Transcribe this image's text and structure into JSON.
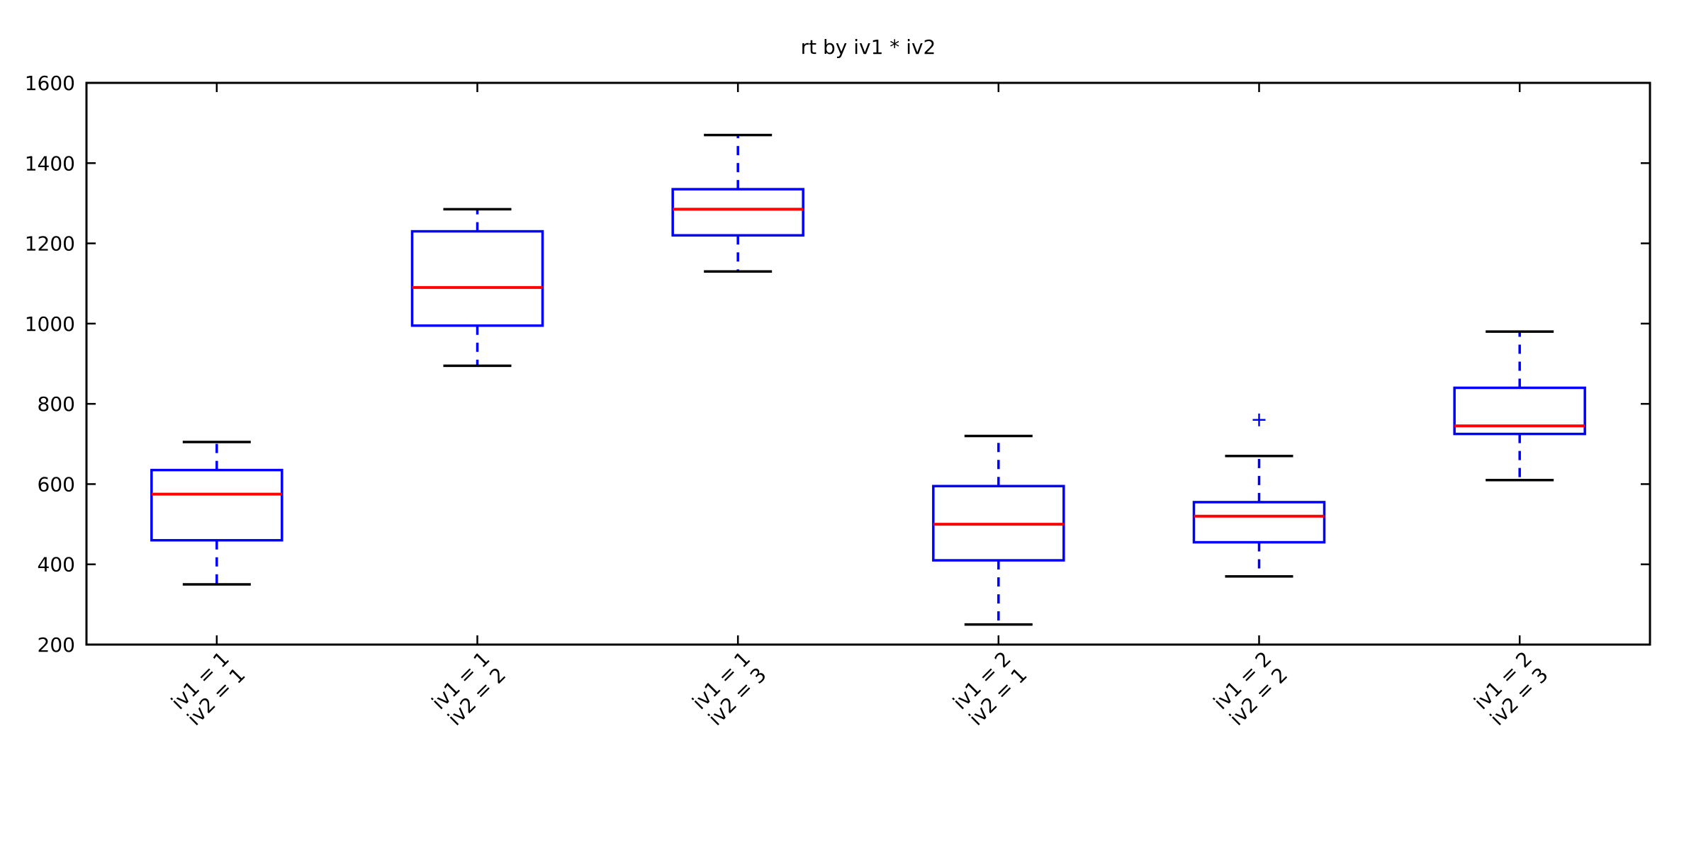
{
  "chart_data": {
    "type": "boxplot",
    "title": "rt by iv1 * iv2",
    "xlabel": "",
    "ylabel": "",
    "ylim": [
      200,
      1600
    ],
    "yticks": [
      200,
      400,
      600,
      800,
      1000,
      1200,
      1400,
      1600
    ],
    "grid": false,
    "legend": null,
    "categories": [
      "iv1 = 1\niv2 = 1",
      "iv1 = 1\niv2 = 2",
      "iv1 = 1\niv2 = 3",
      "iv1 = 2\niv2 = 1",
      "iv1 = 2\niv2 = 2",
      "iv1 = 2\niv2 = 3"
    ],
    "boxes": [
      {
        "whislo": 350,
        "q1": 460,
        "med": 575,
        "q3": 635,
        "whishi": 705,
        "fliers": []
      },
      {
        "whislo": 895,
        "q1": 995,
        "med": 1090,
        "q3": 1230,
        "whishi": 1285,
        "fliers": []
      },
      {
        "whislo": 1130,
        "q1": 1220,
        "med": 1285,
        "q3": 1335,
        "whishi": 1470,
        "fliers": []
      },
      {
        "whislo": 250,
        "q1": 410,
        "med": 500,
        "q3": 595,
        "whishi": 720,
        "fliers": []
      },
      {
        "whislo": 370,
        "q1": 455,
        "med": 520,
        "q3": 555,
        "whishi": 670,
        "fliers": [
          760
        ]
      },
      {
        "whislo": 610,
        "q1": 725,
        "med": 745,
        "q3": 840,
        "whishi": 980,
        "fliers": []
      }
    ],
    "colors": {
      "box": "#0000ff",
      "median": "#ff0000",
      "whisker": "#0000ff",
      "cap": "#000000",
      "flier": "#0000ff",
      "axis": "#000000",
      "background": "#ffffff"
    }
  }
}
